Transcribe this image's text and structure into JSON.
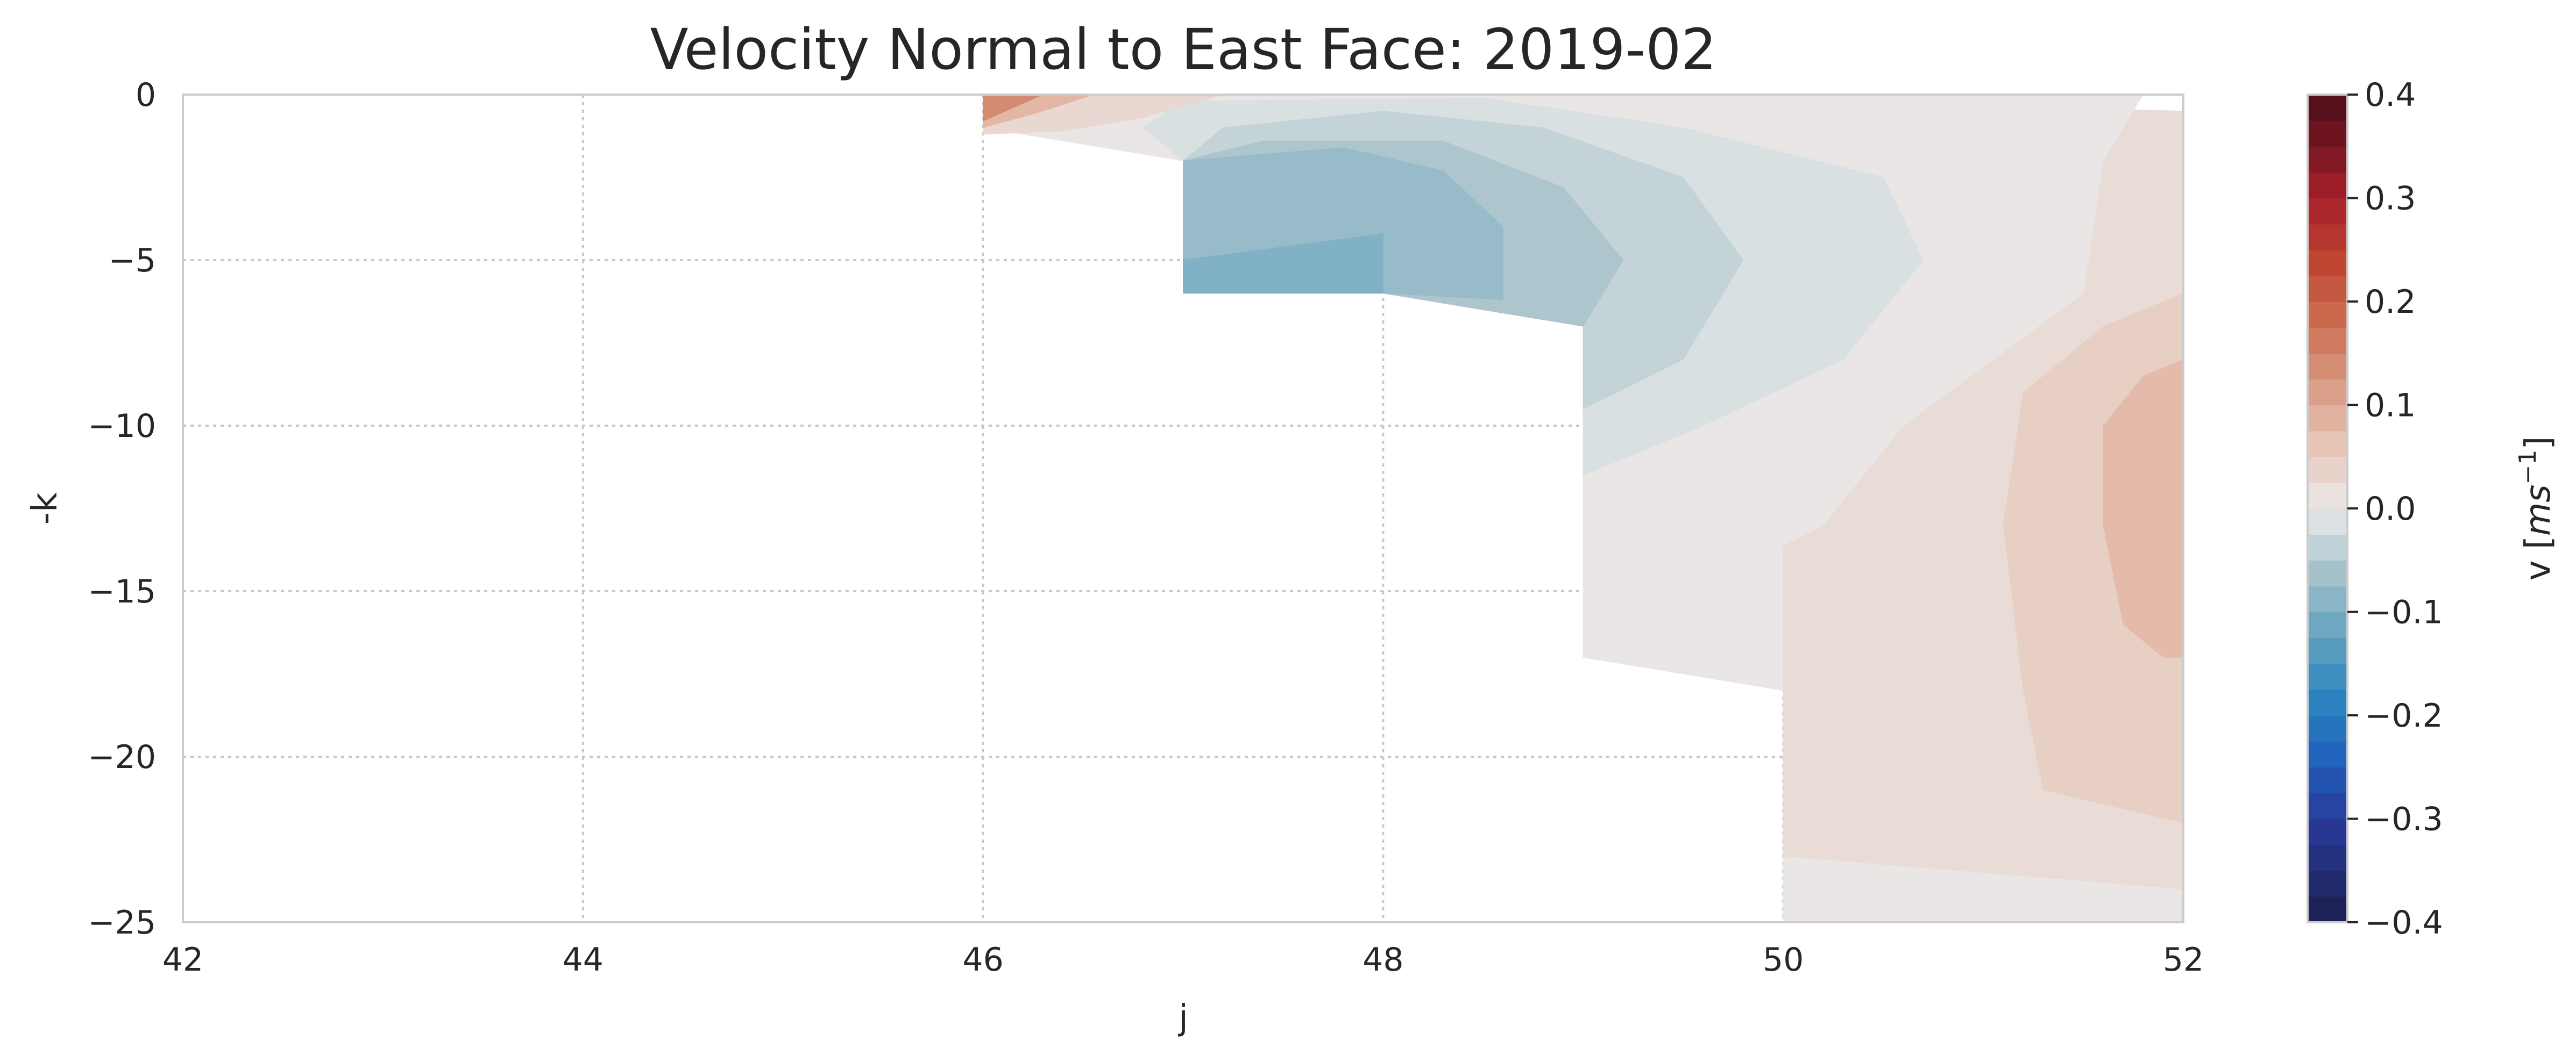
{
  "chart_data": {
    "type": "heatmap",
    "title": "Velocity Normal to East Face: 2019-02",
    "xlabel": "j",
    "ylabel": "-k",
    "xlim": [
      42,
      52
    ],
    "ylim": [
      -25,
      0
    ],
    "xticks": [
      {
        "value": 42,
        "label": "42"
      },
      {
        "value": 44,
        "label": "44"
      },
      {
        "value": 46,
        "label": "46"
      },
      {
        "value": 48,
        "label": "48"
      },
      {
        "value": 50,
        "label": "50"
      },
      {
        "value": 52,
        "label": "52"
      }
    ],
    "yticks": [
      {
        "value": 0,
        "label": "0"
      },
      {
        "value": -5,
        "label": "−5"
      },
      {
        "value": -10,
        "label": "−10"
      },
      {
        "value": -15,
        "label": "−15"
      },
      {
        "value": -20,
        "label": "−20"
      },
      {
        "value": -25,
        "label": "−25"
      }
    ],
    "grid": true,
    "colorbar": {
      "label_prefix": "v [",
      "label_units": "ms",
      "label_exponent": "−1",
      "label_suffix": "]",
      "range": [
        -0.4,
        0.4
      ],
      "levels": 32,
      "ticks": [
        {
          "value": 0.4,
          "label": "0.4"
        },
        {
          "value": 0.3,
          "label": "0.3"
        },
        {
          "value": 0.2,
          "label": "0.2"
        },
        {
          "value": 0.1,
          "label": "0.1"
        },
        {
          "value": 0.0,
          "label": "0.0"
        },
        {
          "value": -0.1,
          "label": "−0.1"
        },
        {
          "value": -0.2,
          "label": "−0.2"
        },
        {
          "value": -0.3,
          "label": "−0.3"
        },
        {
          "value": -0.4,
          "label": "−0.4"
        }
      ],
      "stops": [
        {
          "v": -0.4,
          "color": "#1b1f4d"
        },
        {
          "v": -0.3,
          "color": "#2a3c9c"
        },
        {
          "v": -0.24,
          "color": "#1f62bd"
        },
        {
          "v": -0.18,
          "color": "#2e86bf"
        },
        {
          "v": -0.12,
          "color": "#65a4be"
        },
        {
          "v": -0.06,
          "color": "#a8c3cc"
        },
        {
          "v": 0.0,
          "color": "#e9e9e9"
        },
        {
          "v": 0.06,
          "color": "#e8c6b8"
        },
        {
          "v": 0.12,
          "color": "#d99a82"
        },
        {
          "v": 0.18,
          "color": "#cc6e50"
        },
        {
          "v": 0.24,
          "color": "#bd4430"
        },
        {
          "v": 0.3,
          "color": "#a61f2a"
        },
        {
          "v": 0.4,
          "color": "#4a0e1a"
        }
      ]
    },
    "regions": [
      {
        "value": 0.005,
        "polygon": [
          [
            50,
            -25
          ],
          [
            50,
            -18
          ],
          [
            49,
            -17
          ],
          [
            49,
            -1
          ],
          [
            51.5,
            -2
          ],
          [
            52,
            -3
          ],
          [
            52,
            -25
          ]
        ]
      },
      {
        "value": 0.022,
        "polygon": [
          [
            50,
            -23
          ],
          [
            52,
            -24
          ],
          [
            52,
            -0.5
          ],
          [
            50.2,
            -0.2
          ],
          [
            50,
            -0.5
          ],
          [
            50,
            -23
          ]
        ]
      },
      {
        "value": 0.045,
        "polygon": [
          [
            51.3,
            -21
          ],
          [
            52,
            -22
          ],
          [
            52,
            -6
          ],
          [
            51.6,
            -7
          ],
          [
            51.2,
            -9
          ],
          [
            51.1,
            -13
          ],
          [
            51.2,
            -18
          ]
        ]
      },
      {
        "value": 0.075,
        "polygon": [
          [
            51.9,
            -17
          ],
          [
            52,
            -17
          ],
          [
            52,
            -8
          ],
          [
            51.8,
            -8.5
          ],
          [
            51.6,
            -10
          ],
          [
            51.6,
            -13
          ],
          [
            51.7,
            -16
          ]
        ]
      },
      {
        "value": 0.005,
        "polygon": [
          [
            49,
            -17
          ],
          [
            49,
            -7
          ],
          [
            48,
            -6
          ],
          [
            47,
            -6
          ],
          [
            47,
            -2
          ],
          [
            46,
            -1
          ],
          [
            46,
            0
          ],
          [
            51.8,
            0
          ],
          [
            51.6,
            -2
          ],
          [
            51.5,
            -6
          ],
          [
            50.6,
            -10
          ],
          [
            50.2,
            -13
          ],
          [
            49.4,
            -15.5
          ]
        ]
      },
      {
        "value": -0.015,
        "polygon": [
          [
            49,
            -11.5
          ],
          [
            49.6,
            -10
          ],
          [
            50.3,
            -8
          ],
          [
            50.7,
            -5
          ],
          [
            50.5,
            -2.5
          ],
          [
            49.5,
            -1
          ],
          [
            48.5,
            -0.1
          ],
          [
            47,
            -0.2
          ],
          [
            46.8,
            -1
          ],
          [
            47,
            -2
          ],
          [
            47,
            -6
          ],
          [
            48,
            -6
          ],
          [
            49,
            -7
          ]
        ]
      },
      {
        "value": -0.035,
        "polygon": [
          [
            49,
            -9.5
          ],
          [
            49.5,
            -8
          ],
          [
            49.8,
            -5
          ],
          [
            49.5,
            -2.5
          ],
          [
            48.8,
            -1
          ],
          [
            48,
            -0.5
          ],
          [
            47.2,
            -1
          ],
          [
            47,
            -2
          ],
          [
            47,
            -6
          ],
          [
            48,
            -6
          ],
          [
            49,
            -7
          ]
        ]
      },
      {
        "value": -0.055,
        "polygon": [
          [
            49,
            -7
          ],
          [
            49.2,
            -5
          ],
          [
            48.9,
            -2.8
          ],
          [
            48.3,
            -1.4
          ],
          [
            47.4,
            -1.4
          ],
          [
            47,
            -2
          ],
          [
            47,
            -6
          ],
          [
            48,
            -6
          ]
        ]
      },
      {
        "value": -0.075,
        "polygon": [
          [
            48.6,
            -6.2
          ],
          [
            48.6,
            -4
          ],
          [
            48.3,
            -2.3
          ],
          [
            47.8,
            -1.6
          ],
          [
            47,
            -2
          ],
          [
            47,
            -6
          ],
          [
            48,
            -6
          ]
        ]
      },
      {
        "value": -0.095,
        "polygon": [
          [
            48,
            -6
          ],
          [
            48,
            -4.2
          ],
          [
            47,
            -5
          ],
          [
            47,
            -6
          ]
        ]
      },
      {
        "value": 0.03,
        "polygon": [
          [
            46,
            -1
          ],
          [
            46,
            -0.2
          ],
          [
            46.7,
            0
          ],
          [
            47.2,
            0
          ],
          [
            46.8,
            -0.7
          ],
          [
            46.4,
            -1.1
          ],
          [
            46,
            -1.2
          ]
        ]
      },
      {
        "value": 0.08,
        "polygon": [
          [
            46,
            -1
          ],
          [
            46,
            0
          ],
          [
            46.55,
            0
          ],
          [
            46.3,
            -0.5
          ]
        ]
      },
      {
        "value": 0.14,
        "polygon": [
          [
            46,
            -0.8
          ],
          [
            46,
            0
          ],
          [
            46.3,
            0
          ],
          [
            46.15,
            -0.4
          ]
        ]
      }
    ]
  }
}
